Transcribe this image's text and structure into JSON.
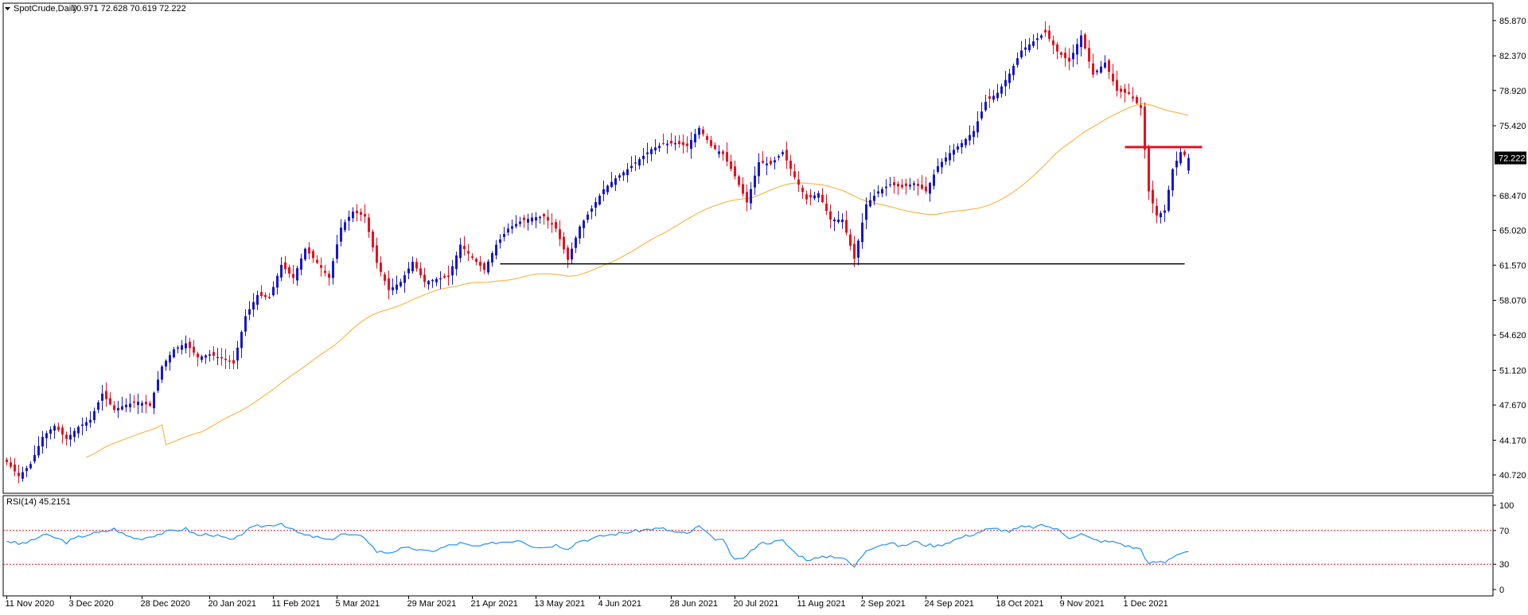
{
  "header": {
    "symbol": "SpotCrude,Daily",
    "ohlc": "70.971 72.628 70.619 72.222"
  },
  "current_price_label": "72.222",
  "rsi_header": "RSI(14) 45.2151",
  "colors": {
    "bull": "#1616d4",
    "bear": "#e8101e",
    "ma": "#f7b84b",
    "rsi_line": "#1e90ff",
    "rsi_levels": "#e8101e",
    "support": "#000000",
    "resistance": "#e8101e"
  },
  "chart_data": [
    {
      "type": "candlestick",
      "title": "SpotCrude,Daily",
      "ohlc_last": {
        "open": 70.971,
        "high": 72.628,
        "low": 70.619,
        "close": 72.222
      },
      "y_ticks": [
        "85.870",
        "82.370",
        "78.920",
        "75.420",
        "72.222",
        "68.470",
        "65.020",
        "61.570",
        "58.070",
        "54.620",
        "51.120",
        "47.670",
        "44.170",
        "40.720"
      ],
      "ylim": [
        38.9,
        87.6
      ],
      "x_labels": [
        "11 Nov 2020",
        "3 Dec 2020",
        "28 Dec 2020",
        "20 Jan 2021",
        "11 Feb 2021",
        "5 Mar 2021",
        "29 Mar 2021",
        "21 Apr 2021",
        "13 May 2021",
        "4 Jun 2021",
        "28 Jun 2021",
        "20 Jul 2021",
        "11 Aug 2021",
        "2 Sep 2021",
        "24 Sep 2021",
        "18 Oct 2021",
        "9 Nov 2021",
        "1 Dec 2021"
      ],
      "x_label_index": [
        0,
        16,
        34,
        51,
        67,
        83,
        101,
        117,
        133,
        149,
        167,
        183,
        199,
        215,
        231,
        249,
        265,
        281
      ],
      "close_anchors": [
        [
          0,
          42
        ],
        [
          3,
          40.6
        ],
        [
          6,
          41.8
        ],
        [
          9,
          44.5
        ],
        [
          12,
          45.6
        ],
        [
          15,
          44.3
        ],
        [
          18,
          45.5
        ],
        [
          21,
          46.2
        ],
        [
          24,
          48.8
        ],
        [
          27,
          47.2
        ],
        [
          30,
          47.7
        ],
        [
          33,
          48
        ],
        [
          36,
          47.6
        ],
        [
          39,
          51.5
        ],
        [
          42,
          53.2
        ],
        [
          45,
          53.8
        ],
        [
          48,
          52.4
        ],
        [
          51,
          52.7
        ],
        [
          54,
          52.3
        ],
        [
          57,
          51.8
        ],
        [
          60,
          56.5
        ],
        [
          63,
          58.6
        ],
        [
          66,
          58.3
        ],
        [
          69,
          61.6
        ],
        [
          72,
          60.3
        ],
        [
          75,
          63.2
        ],
        [
          78,
          61.8
        ],
        [
          81,
          60.3
        ],
        [
          84,
          65.3
        ],
        [
          87,
          66.9
        ],
        [
          90,
          66.4
        ],
        [
          93,
          61.8
        ],
        [
          96,
          59.1
        ],
        [
          99,
          59.9
        ],
        [
          102,
          61.9
        ],
        [
          105,
          59.9
        ],
        [
          108,
          60.2
        ],
        [
          111,
          60.4
        ],
        [
          114,
          63.6
        ],
        [
          117,
          62.3
        ],
        [
          120,
          61.1
        ],
        [
          123,
          63.6
        ],
        [
          126,
          65.2
        ],
        [
          129,
          65.9
        ],
        [
          132,
          66.3
        ],
        [
          135,
          66.4
        ],
        [
          138,
          65.2
        ],
        [
          141,
          62.1
        ],
        [
          144,
          65.4
        ],
        [
          147,
          67.2
        ],
        [
          150,
          69.1
        ],
        [
          153,
          70.2
        ],
        [
          156,
          71.1
        ],
        [
          159,
          72.1
        ],
        [
          162,
          73.1
        ],
        [
          165,
          73.6
        ],
        [
          168,
          73.7
        ],
        [
          171,
          73.4
        ],
        [
          174,
          75.2
        ],
        [
          177,
          73.4
        ],
        [
          180,
          72.6
        ],
        [
          183,
          70.4
        ],
        [
          186,
          67.8
        ],
        [
          189,
          71.8
        ],
        [
          192,
          71.6
        ],
        [
          195,
          72.8
        ],
        [
          198,
          70.3
        ],
        [
          201,
          68.1
        ],
        [
          204,
          68.7
        ],
        [
          207,
          66.1
        ],
        [
          210,
          66.1
        ],
        [
          213,
          62.2
        ],
        [
          216,
          67.6
        ],
        [
          219,
          68.9
        ],
        [
          222,
          69.6
        ],
        [
          225,
          69.3
        ],
        [
          228,
          69.7
        ],
        [
          231,
          68.9
        ],
        [
          234,
          71.4
        ],
        [
          237,
          72.7
        ],
        [
          240,
          73.7
        ],
        [
          243,
          74.9
        ],
        [
          246,
          77.8
        ],
        [
          249,
          78.7
        ],
        [
          252,
          80.6
        ],
        [
          255,
          82.9
        ],
        [
          258,
          83.8
        ],
        [
          261,
          84.7
        ],
        [
          264,
          82.8
        ],
        [
          267,
          81.8
        ],
        [
          270,
          84.4
        ],
        [
          273,
          80.5
        ],
        [
          276,
          81.7
        ],
        [
          279,
          78.9
        ],
        [
          282,
          78.6
        ],
        [
          285,
          77.2
        ],
        [
          287,
          68.9
        ],
        [
          289,
          66.5
        ],
        [
          291,
          67
        ],
        [
          293,
          71.1
        ],
        [
          295,
          72.8
        ],
        [
          297,
          72.2
        ]
      ],
      "bars_count": 298,
      "moving_average": {
        "start": 122.5,
        "stop": 72.8
      },
      "support_line": {
        "value": 61.7,
        "from_index": 124,
        "to_index": 298
      },
      "resistance_line": {
        "value": 73.3,
        "from_index": 281,
        "to_index": 298
      }
    },
    {
      "type": "line",
      "title": "RSI(14) 45.2151",
      "y_ticks": [
        "100",
        "70",
        "30",
        "0"
      ],
      "ylim": [
        0,
        100
      ],
      "levels": [
        70,
        30
      ],
      "last_value": 45.2151,
      "anchors": [
        [
          0,
          58
        ],
        [
          3,
          54
        ],
        [
          6,
          57
        ],
        [
          9,
          65
        ],
        [
          12,
          62
        ],
        [
          15,
          56
        ],
        [
          18,
          62
        ],
        [
          21,
          66
        ],
        [
          24,
          68
        ],
        [
          27,
          72
        ],
        [
          30,
          64
        ],
        [
          33,
          60
        ],
        [
          36,
          63
        ],
        [
          39,
          67
        ],
        [
          42,
          70
        ],
        [
          45,
          72
        ],
        [
          48,
          64
        ],
        [
          51,
          66
        ],
        [
          54,
          62
        ],
        [
          57,
          58
        ],
        [
          60,
          70
        ],
        [
          63,
          75
        ],
        [
          66,
          76
        ],
        [
          69,
          79
        ],
        [
          72,
          70
        ],
        [
          75,
          64
        ],
        [
          78,
          62
        ],
        [
          81,
          58
        ],
        [
          84,
          66
        ],
        [
          87,
          64
        ],
        [
          90,
          62
        ],
        [
          93,
          45
        ],
        [
          96,
          44
        ],
        [
          99,
          48
        ],
        [
          102,
          49
        ],
        [
          105,
          45
        ],
        [
          108,
          47
        ],
        [
          111,
          52
        ],
        [
          114,
          55
        ],
        [
          117,
          51
        ],
        [
          120,
          52
        ],
        [
          123,
          56
        ],
        [
          126,
          57
        ],
        [
          129,
          59
        ],
        [
          132,
          52
        ],
        [
          135,
          50
        ],
        [
          138,
          53
        ],
        [
          141,
          49
        ],
        [
          144,
          58
        ],
        [
          147,
          60
        ],
        [
          150,
          64
        ],
        [
          153,
          66
        ],
        [
          156,
          68
        ],
        [
          159,
          70
        ],
        [
          162,
          72
        ],
        [
          165,
          72
        ],
        [
          168,
          68
        ],
        [
          171,
          66
        ],
        [
          174,
          75
        ],
        [
          177,
          62
        ],
        [
          180,
          58
        ],
        [
          183,
          34
        ],
        [
          186,
          40
        ],
        [
          189,
          55
        ],
        [
          192,
          56
        ],
        [
          195,
          58
        ],
        [
          198,
          44
        ],
        [
          201,
          36
        ],
        [
          204,
          37
        ],
        [
          207,
          40
        ],
        [
          210,
          38
        ],
        [
          213,
          27
        ],
        [
          216,
          47
        ],
        [
          219,
          53
        ],
        [
          222,
          55
        ],
        [
          225,
          51
        ],
        [
          228,
          57
        ],
        [
          231,
          53
        ],
        [
          234,
          52
        ],
        [
          237,
          57
        ],
        [
          240,
          62
        ],
        [
          243,
          66
        ],
        [
          246,
          71
        ],
        [
          249,
          72
        ],
        [
          252,
          69
        ],
        [
          255,
          74
        ],
        [
          258,
          74
        ],
        [
          261,
          76
        ],
        [
          264,
          71
        ],
        [
          267,
          62
        ],
        [
          270,
          66
        ],
        [
          273,
          59
        ],
        [
          276,
          57
        ],
        [
          279,
          56
        ],
        [
          282,
          51
        ],
        [
          285,
          48
        ],
        [
          287,
          30
        ],
        [
          289,
          33
        ],
        [
          291,
          32
        ],
        [
          293,
          39
        ],
        [
          295,
          44
        ],
        [
          297,
          45.2151
        ]
      ]
    }
  ]
}
